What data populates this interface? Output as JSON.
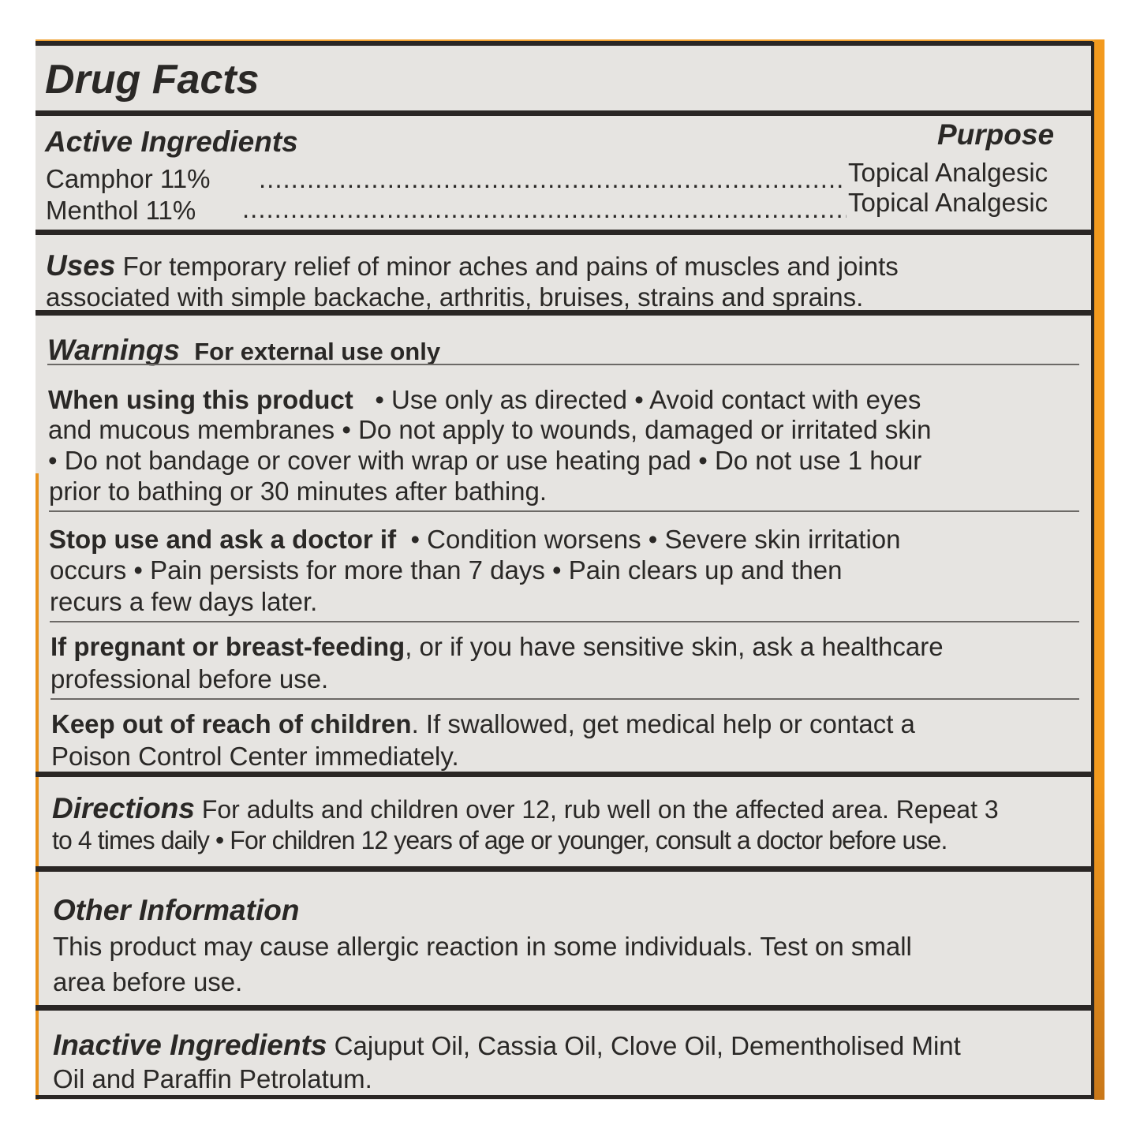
{
  "title": "Drug Facts",
  "active": {
    "heading": "Active Ingredients",
    "purpose_heading": "Purpose",
    "items": [
      {
        "name": "Camphor 11%",
        "purpose": "Topical Analgesic"
      },
      {
        "name": "Menthol 11%",
        "purpose": "Topical Analgesic"
      }
    ]
  },
  "uses": {
    "heading": "Uses",
    "line1": "For temporary relief of minor aches and  pains of muscles and joints",
    "line2": "associated with simple backache, arthritis, bruises, strains and sprains."
  },
  "warnings": {
    "heading": "Warnings",
    "subheading": "For external use only",
    "when_using": {
      "heading": "When using this product",
      "line1": "• Use only as directed  • Avoid contact with eyes",
      "line2": "and mucous membranes  • Do not apply to wounds, damaged or irritated skin",
      "line3": "• Do not bandage or cover with wrap or use heating pad  • Do not use 1 hour",
      "line4": "prior to bathing or 30 minutes after bathing."
    },
    "stop_use": {
      "heading": "Stop use and ask a doctor if",
      "line1": "• Condition worsens  • Severe skin irritation",
      "line2": "occurs  • Pain persists for more than 7 days  • Pain clears up and then",
      "line3": "recurs a few days later."
    },
    "pregnant": {
      "heading": "If pregnant or breast-feeding",
      "line1": ", or if you have sensitive skin, ask a healthcare",
      "line2": "professional before use."
    },
    "children": {
      "heading": "Keep out of reach of children",
      "line1": ". If swallowed, get medical help or contact a",
      "line2": "Poison Control Center immediately."
    }
  },
  "directions": {
    "heading": "Directions",
    "line1": "For adults and children over 12, rub well on the affected area. Repeat 3",
    "line2": "to 4 times daily • For children 12 years of age or younger, consult a doctor before use."
  },
  "other": {
    "heading": "Other Information",
    "line1": "This product may cause allergic reaction in some individuals. Test on small",
    "line2": "area before use."
  },
  "inactive": {
    "heading": "Inactive Ingredients",
    "line1": "Cajuput Oil, Cassia Oil, Clove Oil, Dementholised Mint",
    "line2": "Oil and Paraffin Petrolatum."
  },
  "colors": {
    "border": "#2a2624",
    "accent": "#f39a1e",
    "panel": "#e6e4e1"
  }
}
